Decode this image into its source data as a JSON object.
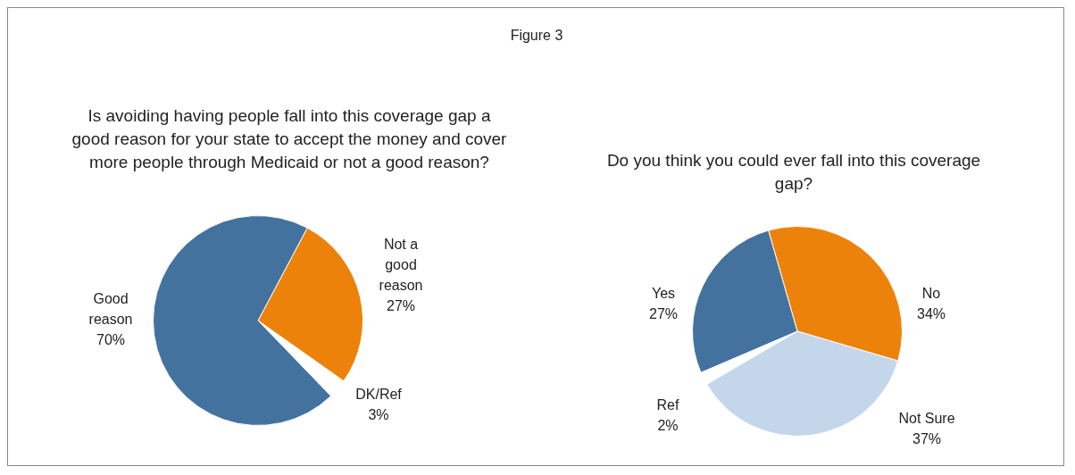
{
  "chart_data": [
    {
      "type": "pie",
      "title": "Is avoiding having people fall into this coverage gap a good reason for your state to accept the money and cover more people through Medicaid or not a good reason?",
      "annotations": [
        "Figure 3"
      ],
      "categories": [
        "Not a good reason",
        "DK/Ref",
        "Good reason"
      ],
      "values": [
        27,
        3,
        70
      ],
      "value_labels": [
        "27%",
        "3%",
        "70%"
      ],
      "colors": [
        "#ed820a",
        "#ffffff",
        "#44729f"
      ],
      "legend": false
    },
    {
      "type": "pie",
      "title": "Do you think you could ever fall into this coverage gap?",
      "categories": [
        "No",
        "Not Sure",
        "Ref",
        "Yes"
      ],
      "values": [
        34,
        37,
        2,
        27
      ],
      "value_labels": [
        "34%",
        "37%",
        "2%",
        "27%"
      ],
      "colors": [
        "#ed820a",
        "#c4d6ea",
        "#ffffff",
        "#44729f"
      ],
      "legend": false
    }
  ]
}
